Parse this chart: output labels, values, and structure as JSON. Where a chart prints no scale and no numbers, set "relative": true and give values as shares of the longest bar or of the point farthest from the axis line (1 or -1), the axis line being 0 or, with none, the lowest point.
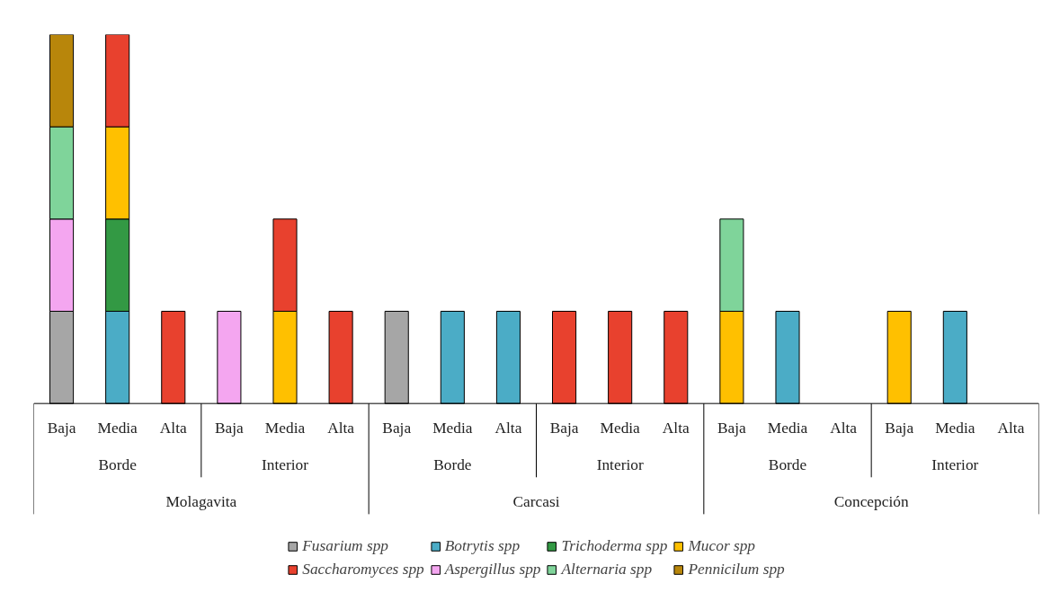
{
  "chart_data": {
    "type": "bar",
    "stacked": true,
    "relative": true,
    "legend": "bottom",
    "grid": false,
    "categories": [
      "Baja",
      "Media",
      "Alta",
      "Baja",
      "Media",
      "Alta",
      "Baja",
      "Media",
      "Alta",
      "Baja",
      "Media",
      "Alta",
      "Baja",
      "Media",
      "Alta",
      "Baja",
      "Media",
      "Alta"
    ],
    "annotations": [
      "Borde",
      "Interior",
      "Borde",
      "Interior",
      "Borde",
      "Interior",
      "Molagavita",
      "Carcasi",
      "Concepción"
    ],
    "series": [
      {
        "name": "Fusarium spp",
        "color": "#a6a6a6",
        "values": [
          0.25,
          null,
          null,
          null,
          null,
          null,
          0.25,
          null,
          null,
          null,
          null,
          null,
          null,
          null,
          null,
          null,
          null,
          null
        ]
      },
      {
        "name": "Botrytis spp",
        "color": "#4bacc6",
        "values": [
          null,
          0.25,
          null,
          null,
          null,
          null,
          null,
          0.25,
          0.25,
          null,
          null,
          null,
          null,
          0.25,
          null,
          null,
          0.25,
          null
        ]
      },
      {
        "name": "Trichoderma spp",
        "color": "#339944",
        "values": [
          null,
          0.25,
          null,
          null,
          null,
          null,
          null,
          null,
          null,
          null,
          null,
          null,
          null,
          null,
          null,
          null,
          null,
          null
        ]
      },
      {
        "name": "Mucor spp",
        "color": "#ffc000",
        "values": [
          null,
          0.25,
          null,
          null,
          0.25,
          null,
          null,
          null,
          null,
          null,
          null,
          null,
          0.25,
          null,
          null,
          0.25,
          null,
          null
        ]
      },
      {
        "name": "Saccharomyces spp",
        "color": "#e8412e",
        "values": [
          null,
          0.25,
          0.25,
          null,
          0.25,
          0.25,
          null,
          null,
          null,
          0.25,
          0.25,
          0.25,
          null,
          null,
          null,
          null,
          null,
          null
        ]
      },
      {
        "name": "Aspergillus spp",
        "color": "#f4a6f0",
        "values": [
          0.25,
          null,
          null,
          0.25,
          null,
          null,
          null,
          null,
          null,
          null,
          null,
          null,
          null,
          null,
          null,
          null,
          null,
          null
        ]
      },
      {
        "name": "Alternaria spp",
        "color": "#7fd49a",
        "values": [
          0.25,
          null,
          null,
          null,
          null,
          null,
          null,
          null,
          null,
          null,
          null,
          null,
          0.25,
          null,
          null,
          null,
          null,
          null
        ]
      },
      {
        "name": "Pennicilum spp",
        "color": "#b8860b",
        "values": [
          0.25,
          null,
          null,
          null,
          null,
          null,
          null,
          null,
          null,
          null,
          null,
          null,
          null,
          null,
          null,
          null,
          null,
          null
        ]
      }
    ]
  }
}
